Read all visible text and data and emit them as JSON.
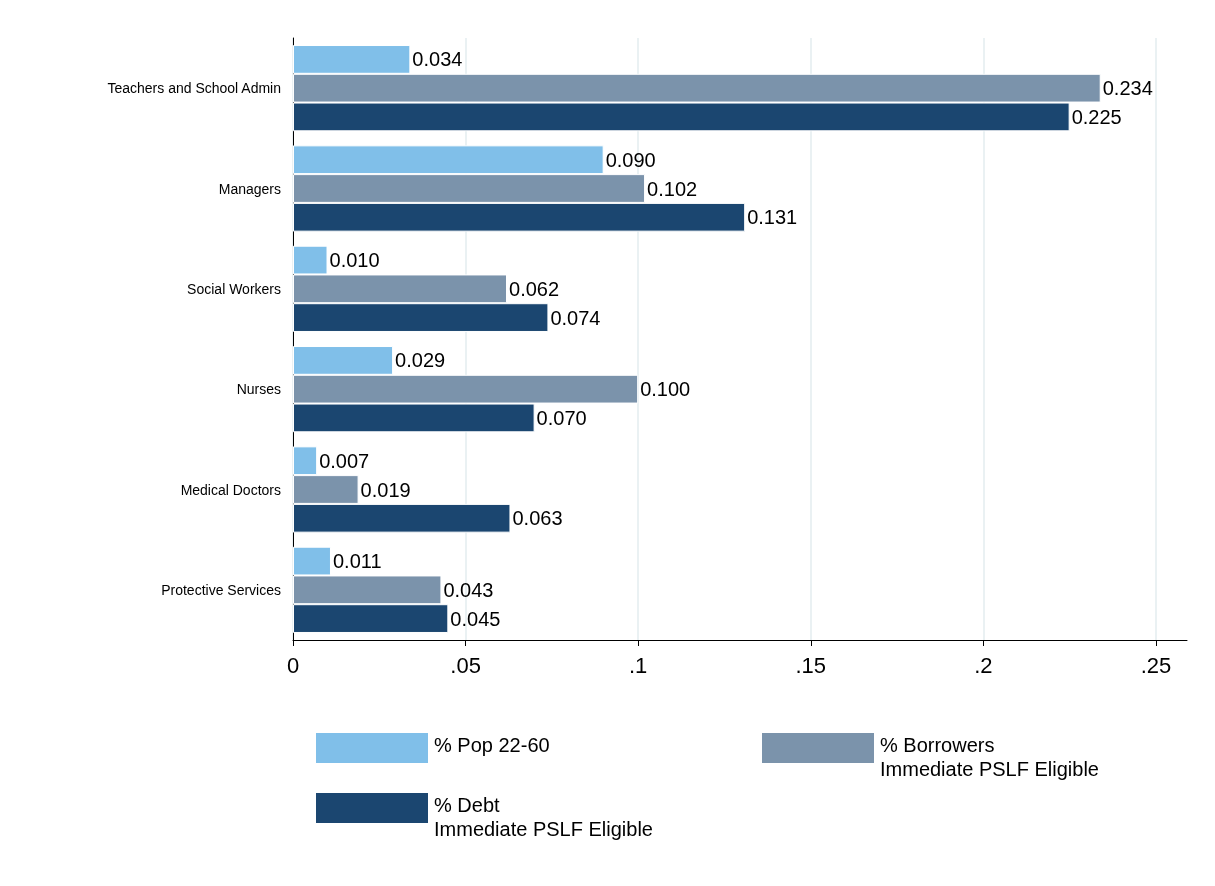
{
  "chart_data": {
    "type": "bar",
    "orientation": "horizontal",
    "categories": [
      "Teachers and School Admin",
      "Managers",
      "Social Workers",
      "Nurses",
      "Medical Doctors",
      "Protective Services"
    ],
    "series": [
      {
        "name": "% Pop 22-60",
        "color": "#80bfe9",
        "values": [
          0.034,
          0.09,
          0.01,
          0.029,
          0.007,
          0.011
        ],
        "value_labels": [
          "0.034",
          "0.090",
          "0.010",
          "0.029",
          "0.007",
          "0.011"
        ]
      },
      {
        "name": "% Borrowers\nImmediate PSLF Eligible",
        "color": "#7b93ab",
        "values": [
          0.234,
          0.102,
          0.062,
          0.1,
          0.019,
          0.043
        ],
        "value_labels": [
          "0.234",
          "0.102",
          "0.062",
          "0.100",
          "0.019",
          "0.043"
        ]
      },
      {
        "name": "% Debt\nImmediate PSLF Eligible",
        "color": "#1b4670",
        "values": [
          0.225,
          0.131,
          0.074,
          0.07,
          0.063,
          0.045
        ],
        "value_labels": [
          "0.225",
          "0.131",
          "0.074",
          "0.070",
          "0.063",
          "0.045"
        ]
      }
    ],
    "xlim": [
      0,
      0.259
    ],
    "xticks": [
      0,
      {
        "value": 0.05,
        "label": ".05"
      },
      {
        "value": 0.1,
        "label": ".1"
      },
      {
        "value": 0.15,
        "label": ".15"
      },
      {
        "value": 0.2,
        "label": ".2"
      },
      {
        "value": 0.25,
        "label": ".25"
      }
    ],
    "grid": "x",
    "legend": "bottom"
  }
}
